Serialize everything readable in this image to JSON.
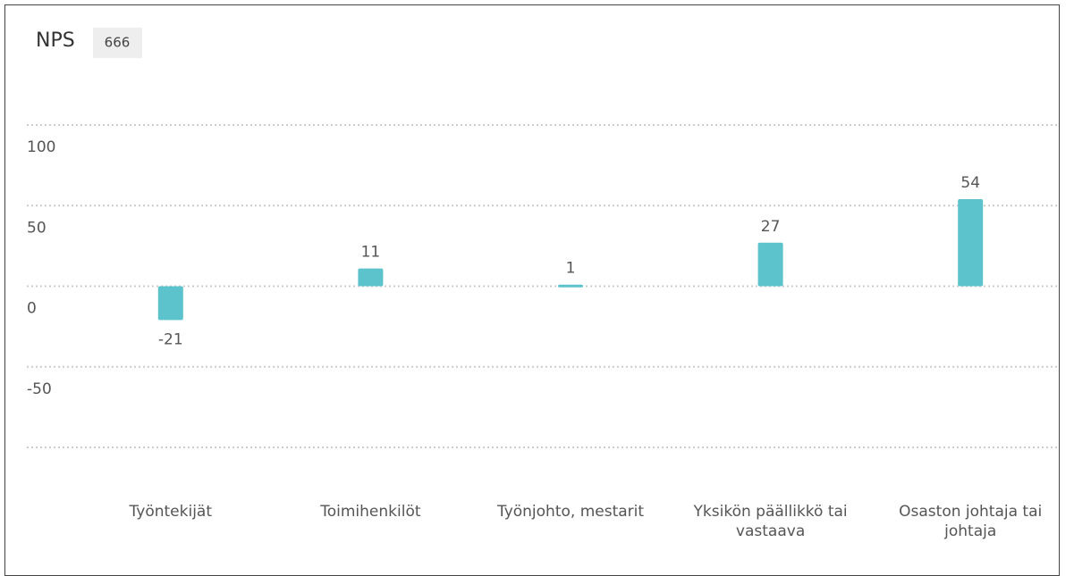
{
  "chart_data": {
    "type": "bar",
    "title": "NPS",
    "badge": "666",
    "categories": [
      "Työntekijät",
      "Toimihenkilöt",
      "Työnjohto, mestarit",
      "Yksikön päällikkö tai vastaava",
      "Osaston johtaja tai johtaja"
    ],
    "values": [
      -21,
      11,
      1,
      27,
      54
    ],
    "color": "#5cc2cb",
    "ylim": [
      -100,
      100
    ],
    "yticks": [
      100,
      50,
      0,
      -50
    ],
    "grid": true
  }
}
